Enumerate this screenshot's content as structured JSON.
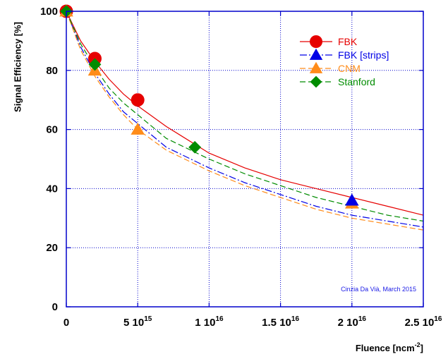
{
  "chart_data": {
    "type": "scatter",
    "xlabel": "Fluence [ncm",
    "xlabel_sup": "-2",
    "xlabel_end": "]",
    "ylabel": "Signal Efficiency [%]",
    "xlim": [
      0,
      2.5e+16
    ],
    "ylim": [
      0,
      100
    ],
    "grid": true,
    "legend_position": "top-right",
    "annotation": "Cinzia Da Vià, March 2015",
    "x_ticks": [
      {
        "value": 0,
        "base": "0",
        "exp": ""
      },
      {
        "value": 5000000000000000.0,
        "base": "5 10",
        "exp": "15"
      },
      {
        "value": 1e+16,
        "base": "1 10",
        "exp": "16"
      },
      {
        "value": 1.5e+16,
        "base": "1.5 10",
        "exp": "16"
      },
      {
        "value": 2e+16,
        "base": "2 10",
        "exp": "16"
      },
      {
        "value": 2.5e+16,
        "base": "2.5 10",
        "exp": "16"
      }
    ],
    "y_ticks": [
      {
        "value": 0,
        "label": "0"
      },
      {
        "value": 20,
        "label": "20"
      },
      {
        "value": 40,
        "label": "40"
      },
      {
        "value": 60,
        "label": "60"
      },
      {
        "value": 80,
        "label": "80"
      },
      {
        "value": 100,
        "label": "100"
      }
    ],
    "series": [
      {
        "name": "FBK",
        "color": "#e60000",
        "marker": "circle",
        "line": "solid",
        "points": [
          [
            0,
            100
          ],
          [
            2000000000000000.0,
            84
          ],
          [
            5000000000000000.0,
            70
          ]
        ],
        "curve": [
          [
            0,
            100
          ],
          [
            1000000000000000.0,
            90
          ],
          [
            2000000000000000.0,
            83
          ],
          [
            3000000000000000.0,
            77
          ],
          [
            4000000000000000.0,
            72
          ],
          [
            5000000000000000.0,
            68
          ],
          [
            7000000000000000.0,
            61
          ],
          [
            1e+16,
            52
          ],
          [
            1.25e+16,
            47
          ],
          [
            1.5e+16,
            43
          ],
          [
            1.75e+16,
            40
          ],
          [
            2e+16,
            37
          ],
          [
            2.25e+16,
            34
          ],
          [
            2.5e+16,
            31
          ]
        ]
      },
      {
        "name": "FBK [strips]",
        "color": "#0000e6",
        "marker": "triangle",
        "line": "dashdot",
        "points": [
          [
            2e+16,
            36
          ]
        ],
        "curve": [
          [
            0,
            100
          ],
          [
            1000000000000000.0,
            88
          ],
          [
            2000000000000000.0,
            79
          ],
          [
            3000000000000000.0,
            72
          ],
          [
            4000000000000000.0,
            66
          ],
          [
            5000000000000000.0,
            62
          ],
          [
            7000000000000000.0,
            54
          ],
          [
            1e+16,
            47
          ],
          [
            1.25e+16,
            42
          ],
          [
            1.5e+16,
            38
          ],
          [
            1.75e+16,
            34
          ],
          [
            2e+16,
            31
          ],
          [
            2.25e+16,
            29
          ],
          [
            2.5e+16,
            27
          ]
        ]
      },
      {
        "name": "CNM",
        "color": "#ff8c1a",
        "marker": "triangle",
        "line": "dashed",
        "points": [
          [
            0,
            100
          ],
          [
            2000000000000000.0,
            80
          ],
          [
            5000000000000000.0,
            60
          ],
          [
            2e+16,
            35
          ]
        ],
        "curve": [
          [
            0,
            100
          ],
          [
            1000000000000000.0,
            87
          ],
          [
            2000000000000000.0,
            78
          ],
          [
            3000000000000000.0,
            71
          ],
          [
            4000000000000000.0,
            65
          ],
          [
            5000000000000000.0,
            60
          ],
          [
            7000000000000000.0,
            53
          ],
          [
            1e+16,
            46
          ],
          [
            1.25e+16,
            41
          ],
          [
            1.5e+16,
            37
          ],
          [
            1.75e+16,
            33
          ],
          [
            2e+16,
            30
          ],
          [
            2.25e+16,
            28
          ],
          [
            2.5e+16,
            26
          ]
        ]
      },
      {
        "name": "Stanford",
        "color": "#008c00",
        "marker": "diamond",
        "line": "dashed",
        "points": [
          [
            0,
            100
          ],
          [
            2000000000000000.0,
            82
          ],
          [
            9000000000000000.0,
            54
          ]
        ],
        "curve": [
          [
            0,
            100
          ],
          [
            1000000000000000.0,
            89
          ],
          [
            2000000000000000.0,
            81
          ],
          [
            3000000000000000.0,
            74
          ],
          [
            4000000000000000.0,
            69
          ],
          [
            5000000000000000.0,
            65
          ],
          [
            7000000000000000.0,
            57
          ],
          [
            1e+16,
            50
          ],
          [
            1.25e+16,
            45
          ],
          [
            1.5e+16,
            41
          ],
          [
            1.75e+16,
            37
          ],
          [
            2e+16,
            34
          ],
          [
            2.25e+16,
            31
          ],
          [
            2.5e+16,
            29
          ]
        ]
      }
    ]
  }
}
